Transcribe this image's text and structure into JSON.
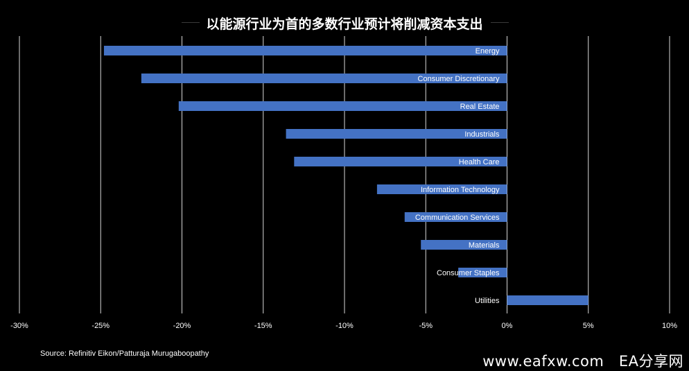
{
  "chart_data": {
    "type": "bar",
    "orientation": "horizontal",
    "title": "以能源行业为首的多数行业预计将削减资本支出",
    "categories": [
      "Energy",
      "Consumer Discretionary",
      "Real Estate",
      "Industrials",
      "Health Care",
      "Information Technology",
      "Communication Services",
      "Materials",
      "Consumer Staples",
      "Utilities"
    ],
    "values": [
      -24.8,
      -22.5,
      -20.2,
      -13.6,
      -13.1,
      -8.0,
      -6.3,
      -5.3,
      -3.0,
      5.0
    ],
    "xlim": [
      -30,
      10
    ],
    "xticks": [
      -30,
      -25,
      -20,
      -15,
      -10,
      -5,
      0,
      5,
      10
    ],
    "xtick_labels": [
      "-30%",
      "-25%",
      "-20%",
      "-15%",
      "-10%",
      "-5%",
      "0%",
      "5%",
      "10%"
    ],
    "grid": "vertical",
    "bar_color": "#4472C4",
    "background": "#000000"
  },
  "source": "Source: Refinitiv Eikon/Patturaja Murugaboopathy",
  "watermark": "www.eafxw.com　EA分享网"
}
